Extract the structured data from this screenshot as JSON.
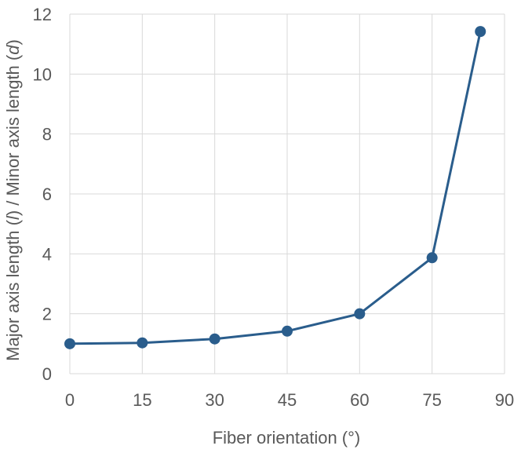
{
  "chart_data": {
    "type": "line",
    "title": "",
    "xlabel": "Fiber orientation (°)",
    "ylabel_parts": [
      {
        "text": "Major axis length (",
        "italic": false
      },
      {
        "text": "l",
        "italic": true
      },
      {
        "text": ") / Minor axis length (",
        "italic": false
      },
      {
        "text": "d",
        "italic": true
      },
      {
        "text": ")",
        "italic": false
      }
    ],
    "xlim": [
      0,
      90
    ],
    "ylim": [
      0,
      12
    ],
    "xticks": [
      0,
      15,
      30,
      45,
      60,
      75,
      90
    ],
    "yticks": [
      0,
      2,
      4,
      6,
      8,
      10,
      12
    ],
    "grid": true,
    "series": [
      {
        "x": [
          0,
          15,
          30,
          45,
          60,
          75,
          85
        ],
        "y": [
          1.0,
          1.03,
          1.16,
          1.42,
          2.0,
          3.87,
          11.42
        ],
        "color": "#2a5d8c"
      }
    ]
  }
}
